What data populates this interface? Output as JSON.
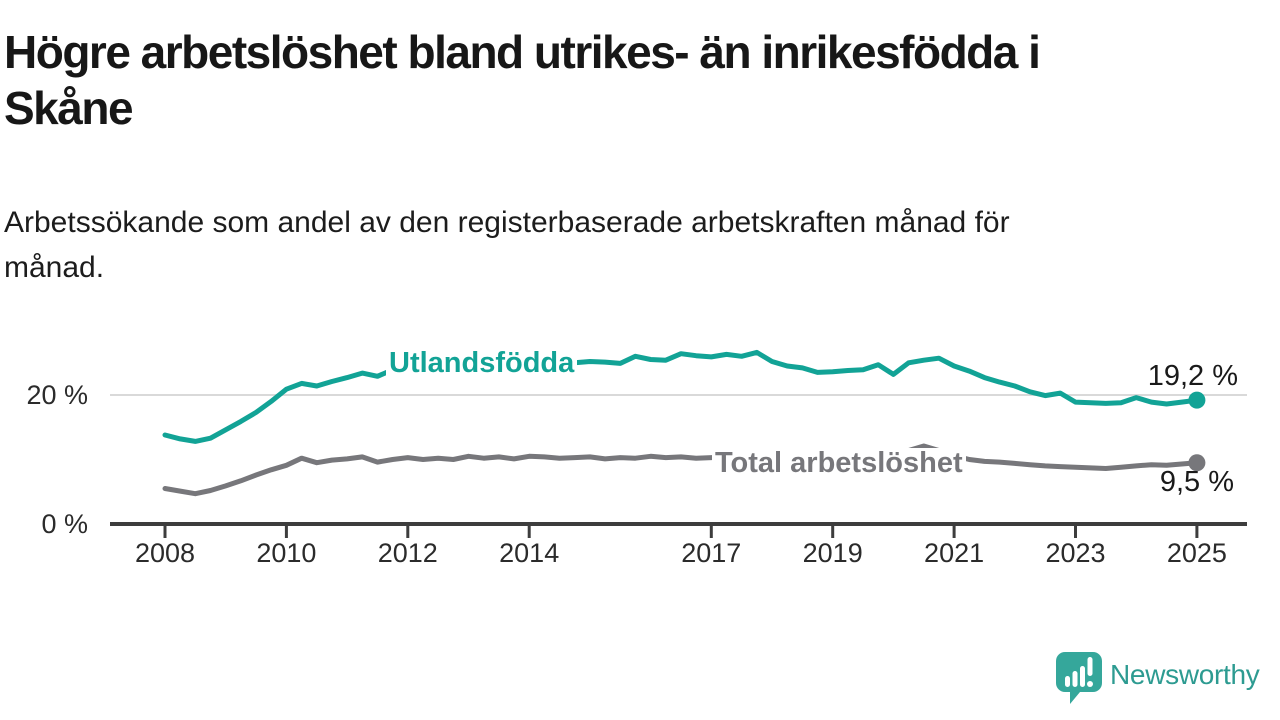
{
  "header": {
    "title_lines": [
      "Högre arbetslöshet bland utrikes- än inrikesfödda i",
      "Skåne"
    ],
    "subtitle_lines": [
      "Arbetssökande som andel av den registerbaserade arbetskraften månad för",
      "månad."
    ]
  },
  "chart_data": {
    "type": "line",
    "title": "Högre arbetslöshet bland utrikes- än inrikesfödda i Skåne",
    "subtitle": "Arbetssökande som andel av den registerbaserade arbetskraften månad för månad.",
    "unit": "%",
    "x_start": 2008,
    "x_step": 0.25,
    "xlim": [
      2008,
      2025
    ],
    "ylim": [
      0,
      28
    ],
    "x_ticks": [
      2008,
      2010,
      2012,
      2014,
      2017,
      2019,
      2021,
      2023,
      2025
    ],
    "y_ticks": [
      {
        "value": 0,
        "label": "0 %"
      },
      {
        "value": 20,
        "label": "20 %"
      }
    ],
    "grid": "horizontal-only",
    "legend_position": "inline-on-line",
    "gridline_color": "#d9d9d9",
    "axis_color": "#3d3d3d",
    "series": [
      {
        "name": "Utlandsfödda",
        "color": "#12a396",
        "end_label": "19,2 %",
        "values": [
          13.8,
          13.2,
          12.8,
          13.3,
          14.6,
          15.9,
          17.3,
          19.0,
          20.9,
          21.8,
          21.4,
          22.1,
          22.7,
          23.4,
          22.9,
          23.9,
          24.2,
          24.1,
          24.4,
          24.3,
          24.6,
          24.4,
          24.7,
          24.5,
          24.8,
          24.9,
          24.7,
          25.0,
          25.2,
          25.1,
          24.9,
          26.0,
          25.5,
          25.4,
          26.4,
          26.1,
          25.9,
          26.3,
          26.0,
          26.6,
          25.2,
          24.5,
          24.2,
          23.5,
          23.6,
          23.8,
          23.9,
          24.7,
          23.2,
          25.0,
          25.4,
          25.7,
          24.5,
          23.7,
          22.7,
          22.0,
          21.4,
          20.5,
          19.9,
          20.3,
          18.9,
          18.8,
          18.7,
          18.8,
          19.6,
          18.9,
          18.6,
          18.9,
          19.2
        ]
      },
      {
        "name": "Total arbetslöshet",
        "color": "#77777b",
        "end_label": "9,5 %",
        "values": [
          5.5,
          5.1,
          4.7,
          5.2,
          5.9,
          6.7,
          7.6,
          8.4,
          9.1,
          10.2,
          9.5,
          9.9,
          10.1,
          10.4,
          9.6,
          10.0,
          10.3,
          10.0,
          10.2,
          10.0,
          10.5,
          10.2,
          10.4,
          10.1,
          10.5,
          10.4,
          10.2,
          10.3,
          10.4,
          10.1,
          10.3,
          10.2,
          10.5,
          10.3,
          10.4,
          10.2,
          10.3,
          10.4,
          10.2,
          10.3,
          10.0,
          9.8,
          9.7,
          9.6,
          9.5,
          9.4,
          9.6,
          9.4,
          9.8,
          11.4,
          12.1,
          11.4,
          10.6,
          10.0,
          9.7,
          9.6,
          9.4,
          9.2,
          9.0,
          8.9,
          8.8,
          8.7,
          8.6,
          8.8,
          9.0,
          9.2,
          9.1,
          9.3,
          9.5
        ]
      }
    ]
  },
  "footer": {
    "brand": "Newsworthy",
    "brand_color": "#2d9b91",
    "icon_color": "#35a79b"
  }
}
